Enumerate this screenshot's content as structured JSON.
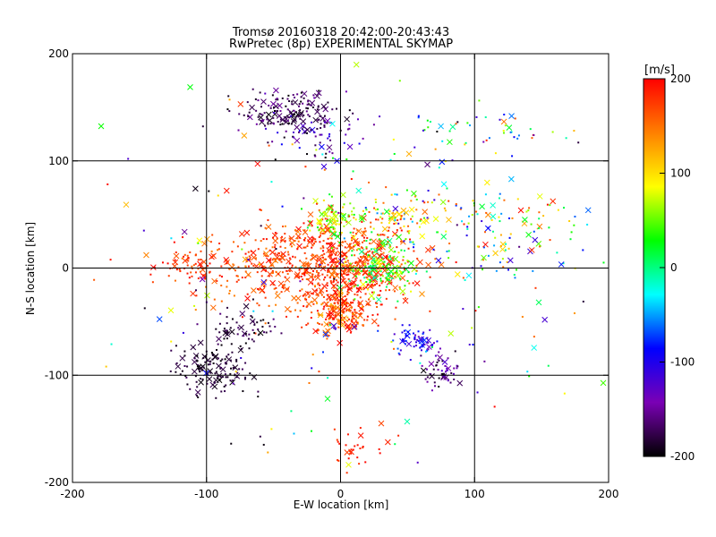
{
  "chart_data": {
    "type": "scatter",
    "title": "Tromsø 20160318 20:42:00-20:43:43",
    "subtitle": "RwPretec (8p) EXPERIMENTAL SKYMAP",
    "xlabel": "E-W location [km]",
    "ylabel": "N-S location [km]",
    "xlim": [
      -200,
      200
    ],
    "ylim": [
      -200,
      200
    ],
    "xticks": [
      -200,
      -100,
      0,
      100,
      200
    ],
    "yticks": [
      -200,
      -100,
      0,
      100,
      200
    ],
    "grid_lines": [
      -100,
      0,
      100
    ],
    "colorbar": {
      "label": "[m/s]",
      "range": [
        -200,
        200
      ],
      "ticks": [
        200,
        100,
        0,
        -100,
        -200
      ],
      "colors": [
        "#000000",
        "#7a00b4",
        "#0000ff",
        "#00ffff",
        "#00ff00",
        "#ffff00",
        "#ff8000",
        "#ff0000"
      ]
    },
    "markers": [
      "x",
      "dot"
    ],
    "series": [
      {
        "clusters": [
          {
            "x": 0,
            "y": 0,
            "sx": 28,
            "sy": 24,
            "n": 520,
            "vmin": 150,
            "vmax": 200
          },
          {
            "x": -40,
            "y": 5,
            "sx": 35,
            "sy": 18,
            "n": 280,
            "vmin": 140,
            "vmax": 200
          },
          {
            "x": -110,
            "y": 0,
            "sx": 12,
            "sy": 10,
            "n": 60,
            "vmin": 160,
            "vmax": 200
          },
          {
            "x": -5,
            "y": 45,
            "sx": 8,
            "sy": 8,
            "n": 90,
            "vmin": 10,
            "vmax": 110
          },
          {
            "x": 30,
            "y": 0,
            "sx": 12,
            "sy": 12,
            "n": 140,
            "vmin": -10,
            "vmax": 90
          },
          {
            "x": 0,
            "y": -40,
            "sx": 10,
            "sy": 12,
            "n": 160,
            "vmin": 120,
            "vmax": 200
          },
          {
            "x": -40,
            "y": 145,
            "sx": 18,
            "sy": 10,
            "n": 150,
            "vmin": -200,
            "vmax": -150
          },
          {
            "x": -15,
            "y": 125,
            "sx": 16,
            "sy": 12,
            "n": 70,
            "vmin": -200,
            "vmax": -90
          },
          {
            "x": -95,
            "y": -95,
            "sx": 14,
            "sy": 12,
            "n": 140,
            "vmin": -200,
            "vmax": -170
          },
          {
            "x": -70,
            "y": -55,
            "sx": 12,
            "sy": 10,
            "n": 60,
            "vmin": -200,
            "vmax": -160
          },
          {
            "x": 55,
            "y": -68,
            "sx": 8,
            "sy": 6,
            "n": 60,
            "vmin": -140,
            "vmax": -60
          },
          {
            "x": 75,
            "y": -95,
            "sx": 8,
            "sy": 8,
            "n": 50,
            "vmin": -200,
            "vmax": -120
          },
          {
            "x": 100,
            "y": 35,
            "sx": 45,
            "sy": 25,
            "n": 160,
            "vmin": -120,
            "vmax": 200
          },
          {
            "x": 110,
            "y": 125,
            "sx": 30,
            "sy": 12,
            "n": 45,
            "vmin": -200,
            "vmax": 200
          },
          {
            "x": 40,
            "y": 50,
            "sx": 12,
            "sy": 10,
            "n": 70,
            "vmin": 20,
            "vmax": 180
          },
          {
            "x": 15,
            "y": -170,
            "sx": 12,
            "sy": 10,
            "n": 30,
            "vmin": 170,
            "vmax": 200
          },
          {
            "x": 0,
            "y": 0,
            "sx": 110,
            "sy": 90,
            "n": 220,
            "vmin": -200,
            "vmax": 200
          }
        ]
      }
    ]
  }
}
